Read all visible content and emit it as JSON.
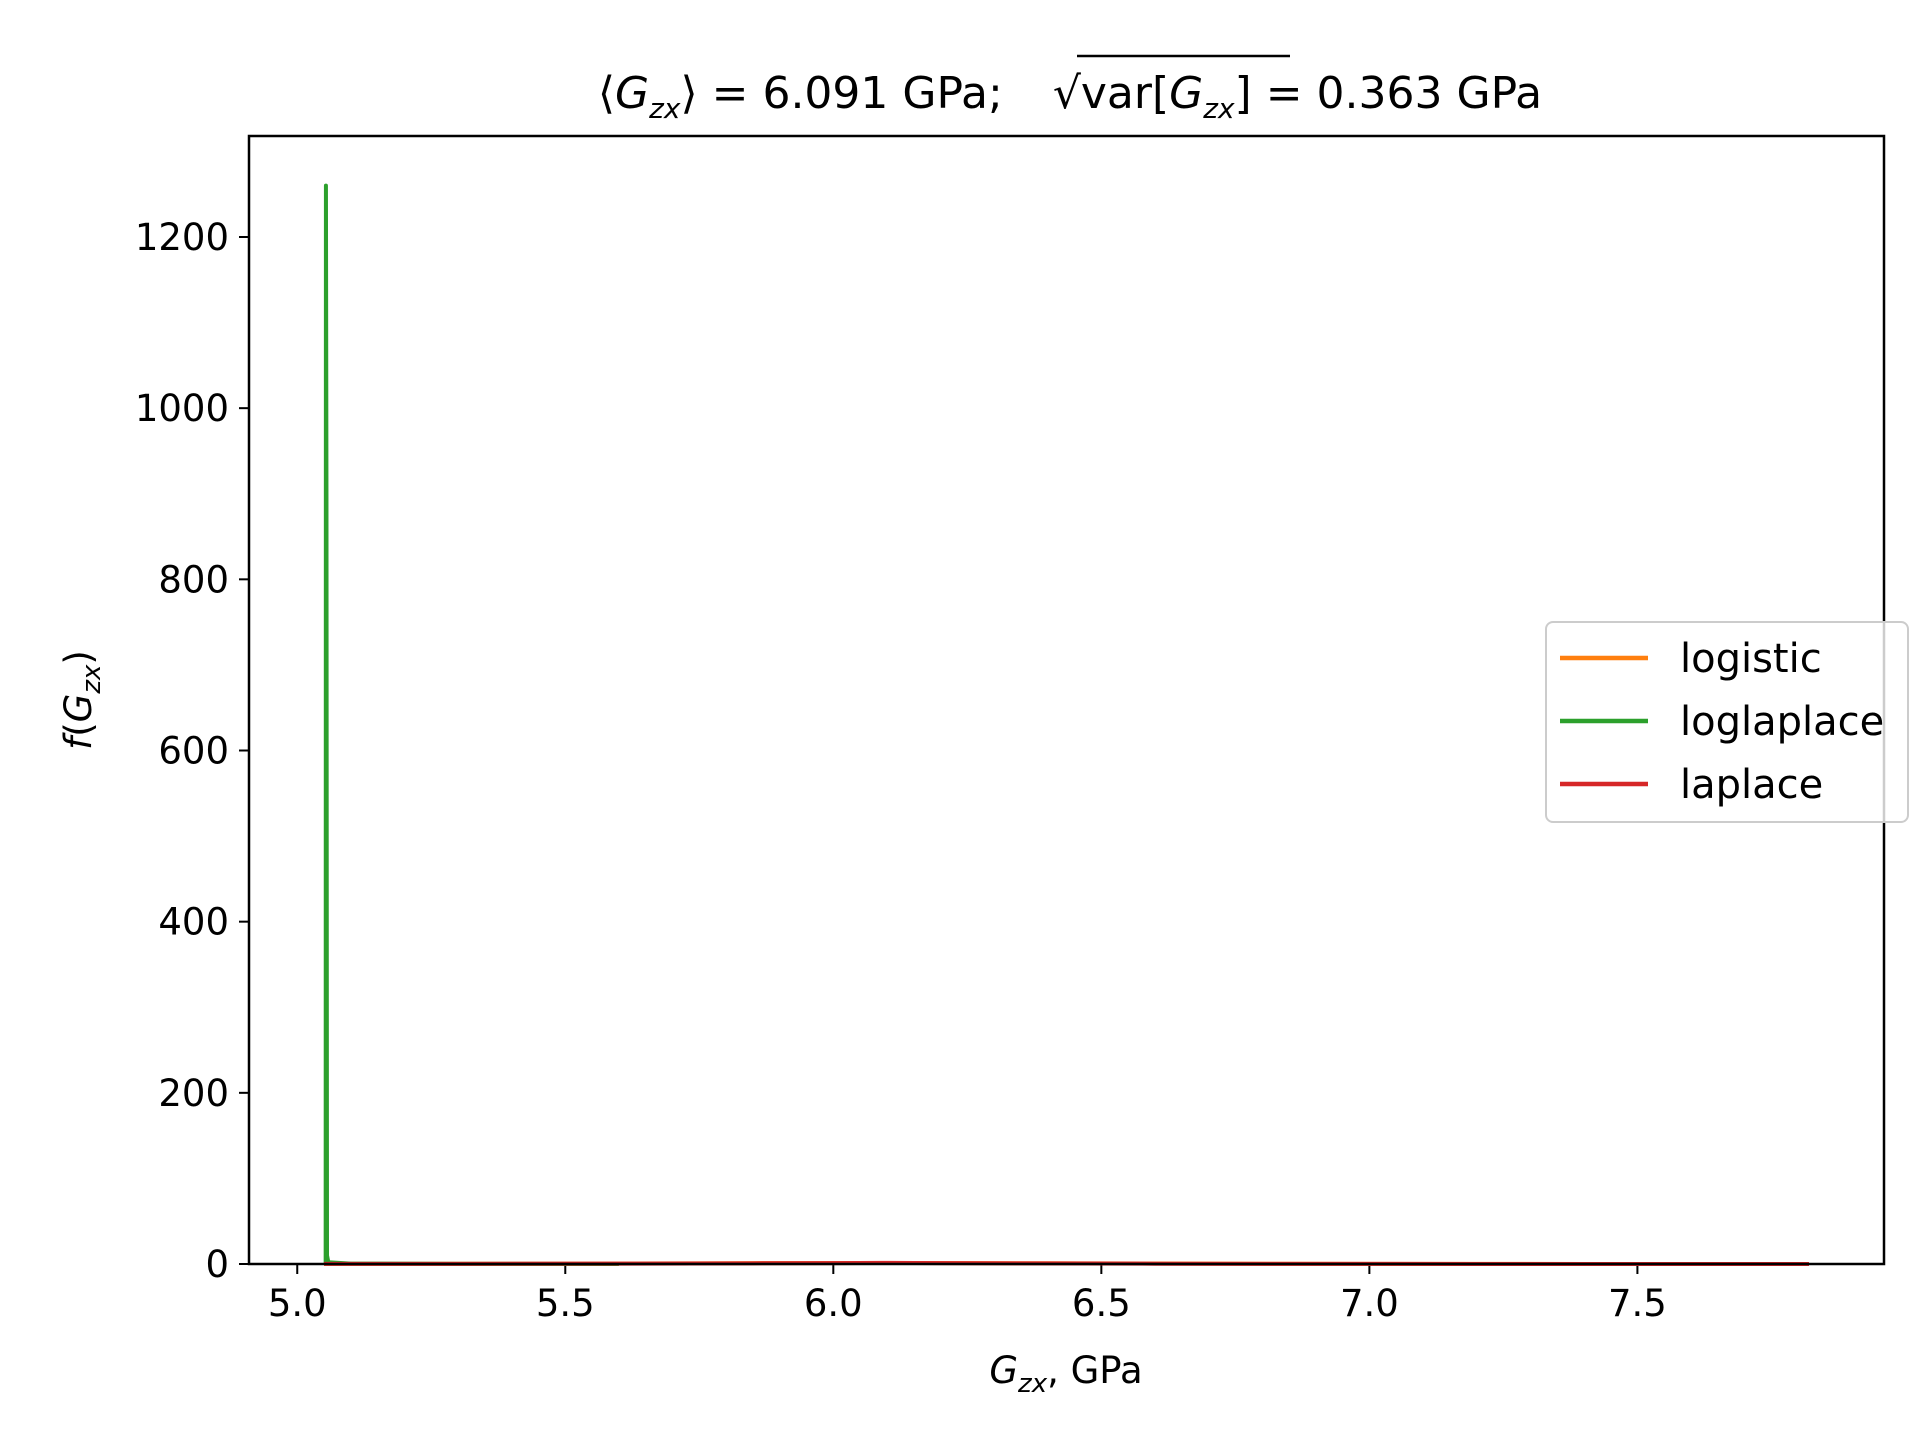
{
  "chart_data": {
    "type": "line",
    "title_parts": {
      "mean_open": "⟨",
      "var_symbol": "G",
      "var_subscript": "zx",
      "mean_close": "⟩",
      "mean_equals": " = 6.091 GPa;",
      "sqrt_symbol": "√",
      "var_prefix": "var[",
      "var_suffix": "]",
      "std_equals": " = 0.363 GPa"
    },
    "xlabel_parts": {
      "symbol": "G",
      "subscript": "zx",
      "suffix": ", GPa"
    },
    "ylabel_parts": {
      "func": "f",
      "open": "(",
      "symbol": "G",
      "subscript": "zx",
      "close": ")"
    },
    "xlim": [
      4.91,
      7.96
    ],
    "ylim": [
      0,
      1318
    ],
    "xticks": [
      5.0,
      5.5,
      6.0,
      6.5,
      7.0,
      7.5
    ],
    "xtick_labels": [
      "5.0",
      "5.5",
      "6.0",
      "6.5",
      "7.0",
      "7.5"
    ],
    "yticks": [
      0,
      200,
      400,
      600,
      800,
      1000,
      1200
    ],
    "ytick_labels": [
      "0",
      "200",
      "400",
      "600",
      "800",
      "1000",
      "1200"
    ],
    "grid": false,
    "legend_position": "center-right",
    "series": [
      {
        "name": "logistic",
        "color": "#ff7f0e",
        "x": [
          5.05,
          5.3,
          5.55,
          5.8,
          5.95,
          6.09,
          6.25,
          6.4,
          6.6,
          6.85,
          7.1,
          7.4,
          7.82
        ],
        "y": [
          0.12,
          0.25,
          0.5,
          0.88,
          1.05,
          1.15,
          1.03,
          0.82,
          0.52,
          0.28,
          0.14,
          0.06,
          0.02
        ]
      },
      {
        "name": "loglaplace",
        "color": "#2ca02c",
        "x": [
          5.053,
          5.0535,
          5.0545,
          5.0555,
          5.058,
          5.1,
          5.3,
          5.6
        ],
        "y": [
          0,
          1260,
          900,
          10,
          2,
          0.5,
          0.2,
          0.05
        ]
      },
      {
        "name": "laplace",
        "color": "#d62728",
        "x": [
          5.05,
          5.3,
          5.6,
          5.85,
          6.0,
          6.091,
          6.2,
          6.35,
          6.6,
          6.9,
          7.2,
          7.5,
          7.82
        ],
        "y": [
          0.09,
          0.18,
          0.4,
          0.8,
          1.05,
          1.38,
          1.02,
          0.7,
          0.35,
          0.15,
          0.07,
          0.03,
          0.01
        ]
      }
    ]
  }
}
